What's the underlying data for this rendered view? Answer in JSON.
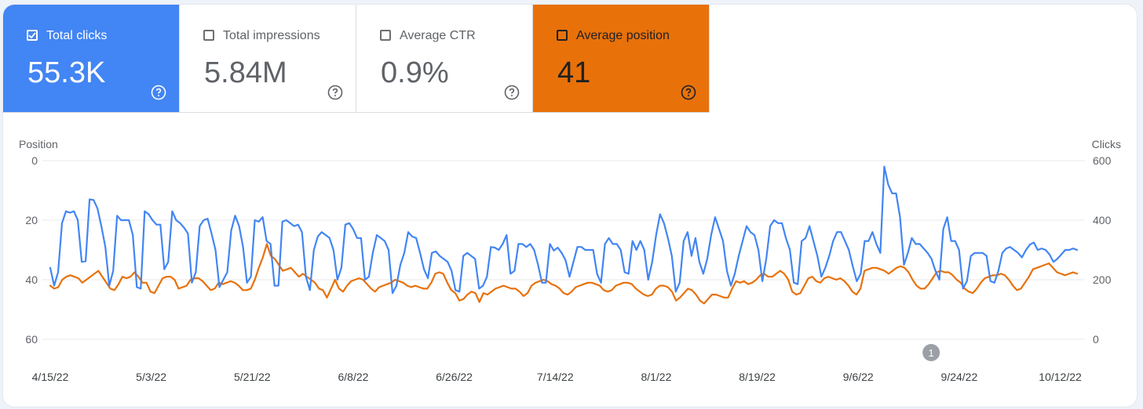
{
  "cards": [
    {
      "label": "Total clicks",
      "value": "55.3K",
      "color": "#4285f4",
      "text_color": "#ffffff",
      "checked": true,
      "help_icon": "question-circle-icon"
    },
    {
      "label": "Total impressions",
      "value": "5.84M",
      "color": "#ffffff",
      "text_color": "#5f6368",
      "checked": false,
      "help_icon": "question-circle-icon"
    },
    {
      "label": "Average CTR",
      "value": "0.9%",
      "color": "#ffffff",
      "text_color": "#5f6368",
      "checked": false,
      "help_icon": "question-circle-icon"
    },
    {
      "label": "Average position",
      "value": "41",
      "color": "#e8710a",
      "text_color": "#202124",
      "checked": true,
      "help_icon": "question-circle-icon"
    }
  ],
  "chart_data": {
    "type": "line",
    "left_axis": {
      "title": "Position",
      "ticks": [
        "0",
        "20",
        "40",
        "60"
      ],
      "range": [
        0,
        60
      ],
      "inverted": true
    },
    "right_axis": {
      "title": "Clicks",
      "ticks": [
        "600",
        "400",
        "200",
        "0"
      ],
      "range": [
        0,
        600
      ]
    },
    "x_ticks": [
      "4/15/22",
      "5/3/22",
      "5/21/22",
      "6/8/22",
      "6/26/22",
      "7/14/22",
      "8/1/22",
      "8/19/22",
      "9/6/22",
      "9/24/22",
      "10/12/22"
    ],
    "grid": true,
    "annotation": {
      "label": "1",
      "date": "9/19/22"
    },
    "series": [
      {
        "name": "Total clicks",
        "axis": "right",
        "color": "#4285f4",
        "start": "4/15/22",
        "end": "10/15/22",
        "values": [
          240,
          180,
          225,
          390,
          430,
          425,
          430,
          400,
          260,
          262,
          470,
          468,
          440,
          380,
          310,
          180,
          230,
          415,
          400,
          400,
          400,
          350,
          175,
          170,
          430,
          420,
          400,
          385,
          385,
          235,
          260,
          430,
          400,
          390,
          375,
          355,
          190,
          225,
          380,
          400,
          405,
          355,
          300,
          175,
          200,
          225,
          365,
          415,
          380,
          310,
          190,
          210,
          400,
          395,
          410,
          330,
          320,
          180,
          180,
          395,
          400,
          390,
          380,
          385,
          360,
          210,
          165,
          300,
          345,
          360,
          350,
          340,
          300,
          200,
          240,
          385,
          390,
          370,
          340,
          340,
          200,
          210,
          290,
          350,
          340,
          330,
          300,
          155,
          180,
          250,
          290,
          360,
          345,
          340,
          290,
          235,
          205,
          290,
          295,
          280,
          270,
          260,
          230,
          165,
          160,
          280,
          290,
          280,
          270,
          170,
          180,
          210,
          310,
          308,
          300,
          320,
          350,
          220,
          230,
          320,
          320,
          310,
          320,
          300,
          250,
          190,
          190,
          320,
          298,
          308,
          290,
          265,
          210,
          260,
          310,
          310,
          300,
          300,
          300,
          220,
          190,
          320,
          340,
          320,
          320,
          300,
          225,
          220,
          330,
          300,
          330,
          300,
          200,
          260,
          350,
          420,
          390,
          340,
          280,
          160,
          190,
          330,
          360,
          280,
          340,
          260,
          220,
          270,
          350,
          410,
          370,
          330,
          230,
          180,
          220,
          280,
          330,
          380,
          360,
          350,
          300,
          195,
          270,
          380,
          400,
          390,
          390,
          340,
          300,
          190,
          185,
          330,
          340,
          380,
          330,
          280,
          210,
          240,
          280,
          330,
          360,
          360,
          330,
          300,
          245,
          195,
          220,
          330,
          330,
          360,
          320,
          290,
          580,
          520,
          490,
          490,
          410,
          250,
          290,
          340,
          320,
          320,
          305,
          290,
          270,
          230,
          200,
          370,
          410,
          330,
          330,
          300,
          170,
          195,
          280,
          290,
          290,
          290,
          280,
          195,
          190,
          230,
          290,
          305,
          310,
          300,
          290,
          275,
          300,
          318,
          325,
          300,
          305,
          300,
          285,
          260,
          270,
          285,
          300,
          300,
          305,
          300
        ]
      },
      {
        "name": "Average position",
        "axis": "left",
        "color": "#e8710a",
        "start": "4/15/22",
        "end": "10/15/22",
        "values": [
          42,
          43,
          42.5,
          40,
          39,
          38.5,
          39,
          39.5,
          41,
          40,
          39,
          38,
          37,
          39,
          41,
          43,
          43.5,
          41.5,
          39,
          39.5,
          39,
          37.5,
          39,
          41,
          41,
          44,
          44.5,
          42,
          39.5,
          39,
          39,
          40,
          43,
          42.5,
          42,
          40,
          39.5,
          39.5,
          40.5,
          42,
          43.5,
          43,
          41,
          41.5,
          41,
          40.5,
          41,
          42,
          43.5,
          43.5,
          43,
          40,
          36,
          32.5,
          28,
          32,
          33,
          35,
          37,
          36.5,
          36,
          37.5,
          39,
          38,
          39,
          40,
          41,
          43,
          43.5,
          46,
          43,
          40,
          43,
          44,
          42,
          40.5,
          40,
          39.5,
          40,
          41.5,
          43,
          44,
          42.5,
          42,
          41.5,
          41,
          40,
          40.5,
          41,
          42,
          42.5,
          42,
          42.5,
          43,
          43,
          41,
          38,
          37.5,
          38,
          41,
          43.5,
          44.5,
          47,
          46.5,
          45,
          44,
          44.5,
          47.5,
          44.5,
          45,
          44,
          43,
          42.5,
          42,
          42.5,
          43,
          43,
          44,
          45.5,
          44.5,
          42,
          41,
          40.5,
          40,
          40.5,
          41.5,
          42,
          43,
          44.5,
          45,
          44,
          42.5,
          42,
          41.5,
          41,
          41,
          41.5,
          42,
          43.5,
          44,
          43.5,
          42,
          41.5,
          41,
          41,
          41.5,
          43,
          44,
          45,
          45.5,
          45,
          43,
          42,
          42,
          42.5,
          44,
          47,
          46,
          44.5,
          43,
          43.5,
          45,
          47,
          48,
          46.5,
          45,
          45,
          45.5,
          46,
          46,
          43,
          40.5,
          41,
          40.5,
          41.5,
          41,
          40,
          38.5,
          38,
          39,
          39,
          38,
          37,
          38,
          40,
          44,
          45,
          44.5,
          42,
          39.5,
          39,
          40.5,
          41,
          39.5,
          39,
          39.5,
          40,
          39.5,
          40.5,
          42,
          44,
          45,
          43,
          37,
          36.5,
          36,
          36,
          36.5,
          37,
          38,
          37,
          36,
          35.5,
          36,
          37.5,
          40,
          42,
          43,
          43,
          41.5,
          39.5,
          37.5,
          37,
          37.5,
          37.5,
          38.5,
          40,
          41,
          43,
          44,
          44.5,
          43,
          41,
          39.5,
          39,
          38.5,
          38.5,
          38,
          38.5,
          40,
          42,
          43.5,
          43,
          41,
          39,
          36.5,
          36,
          35.5,
          35,
          34.5,
          36,
          37.5,
          38,
          38.5,
          38,
          37.5,
          38
        ]
      }
    ]
  }
}
